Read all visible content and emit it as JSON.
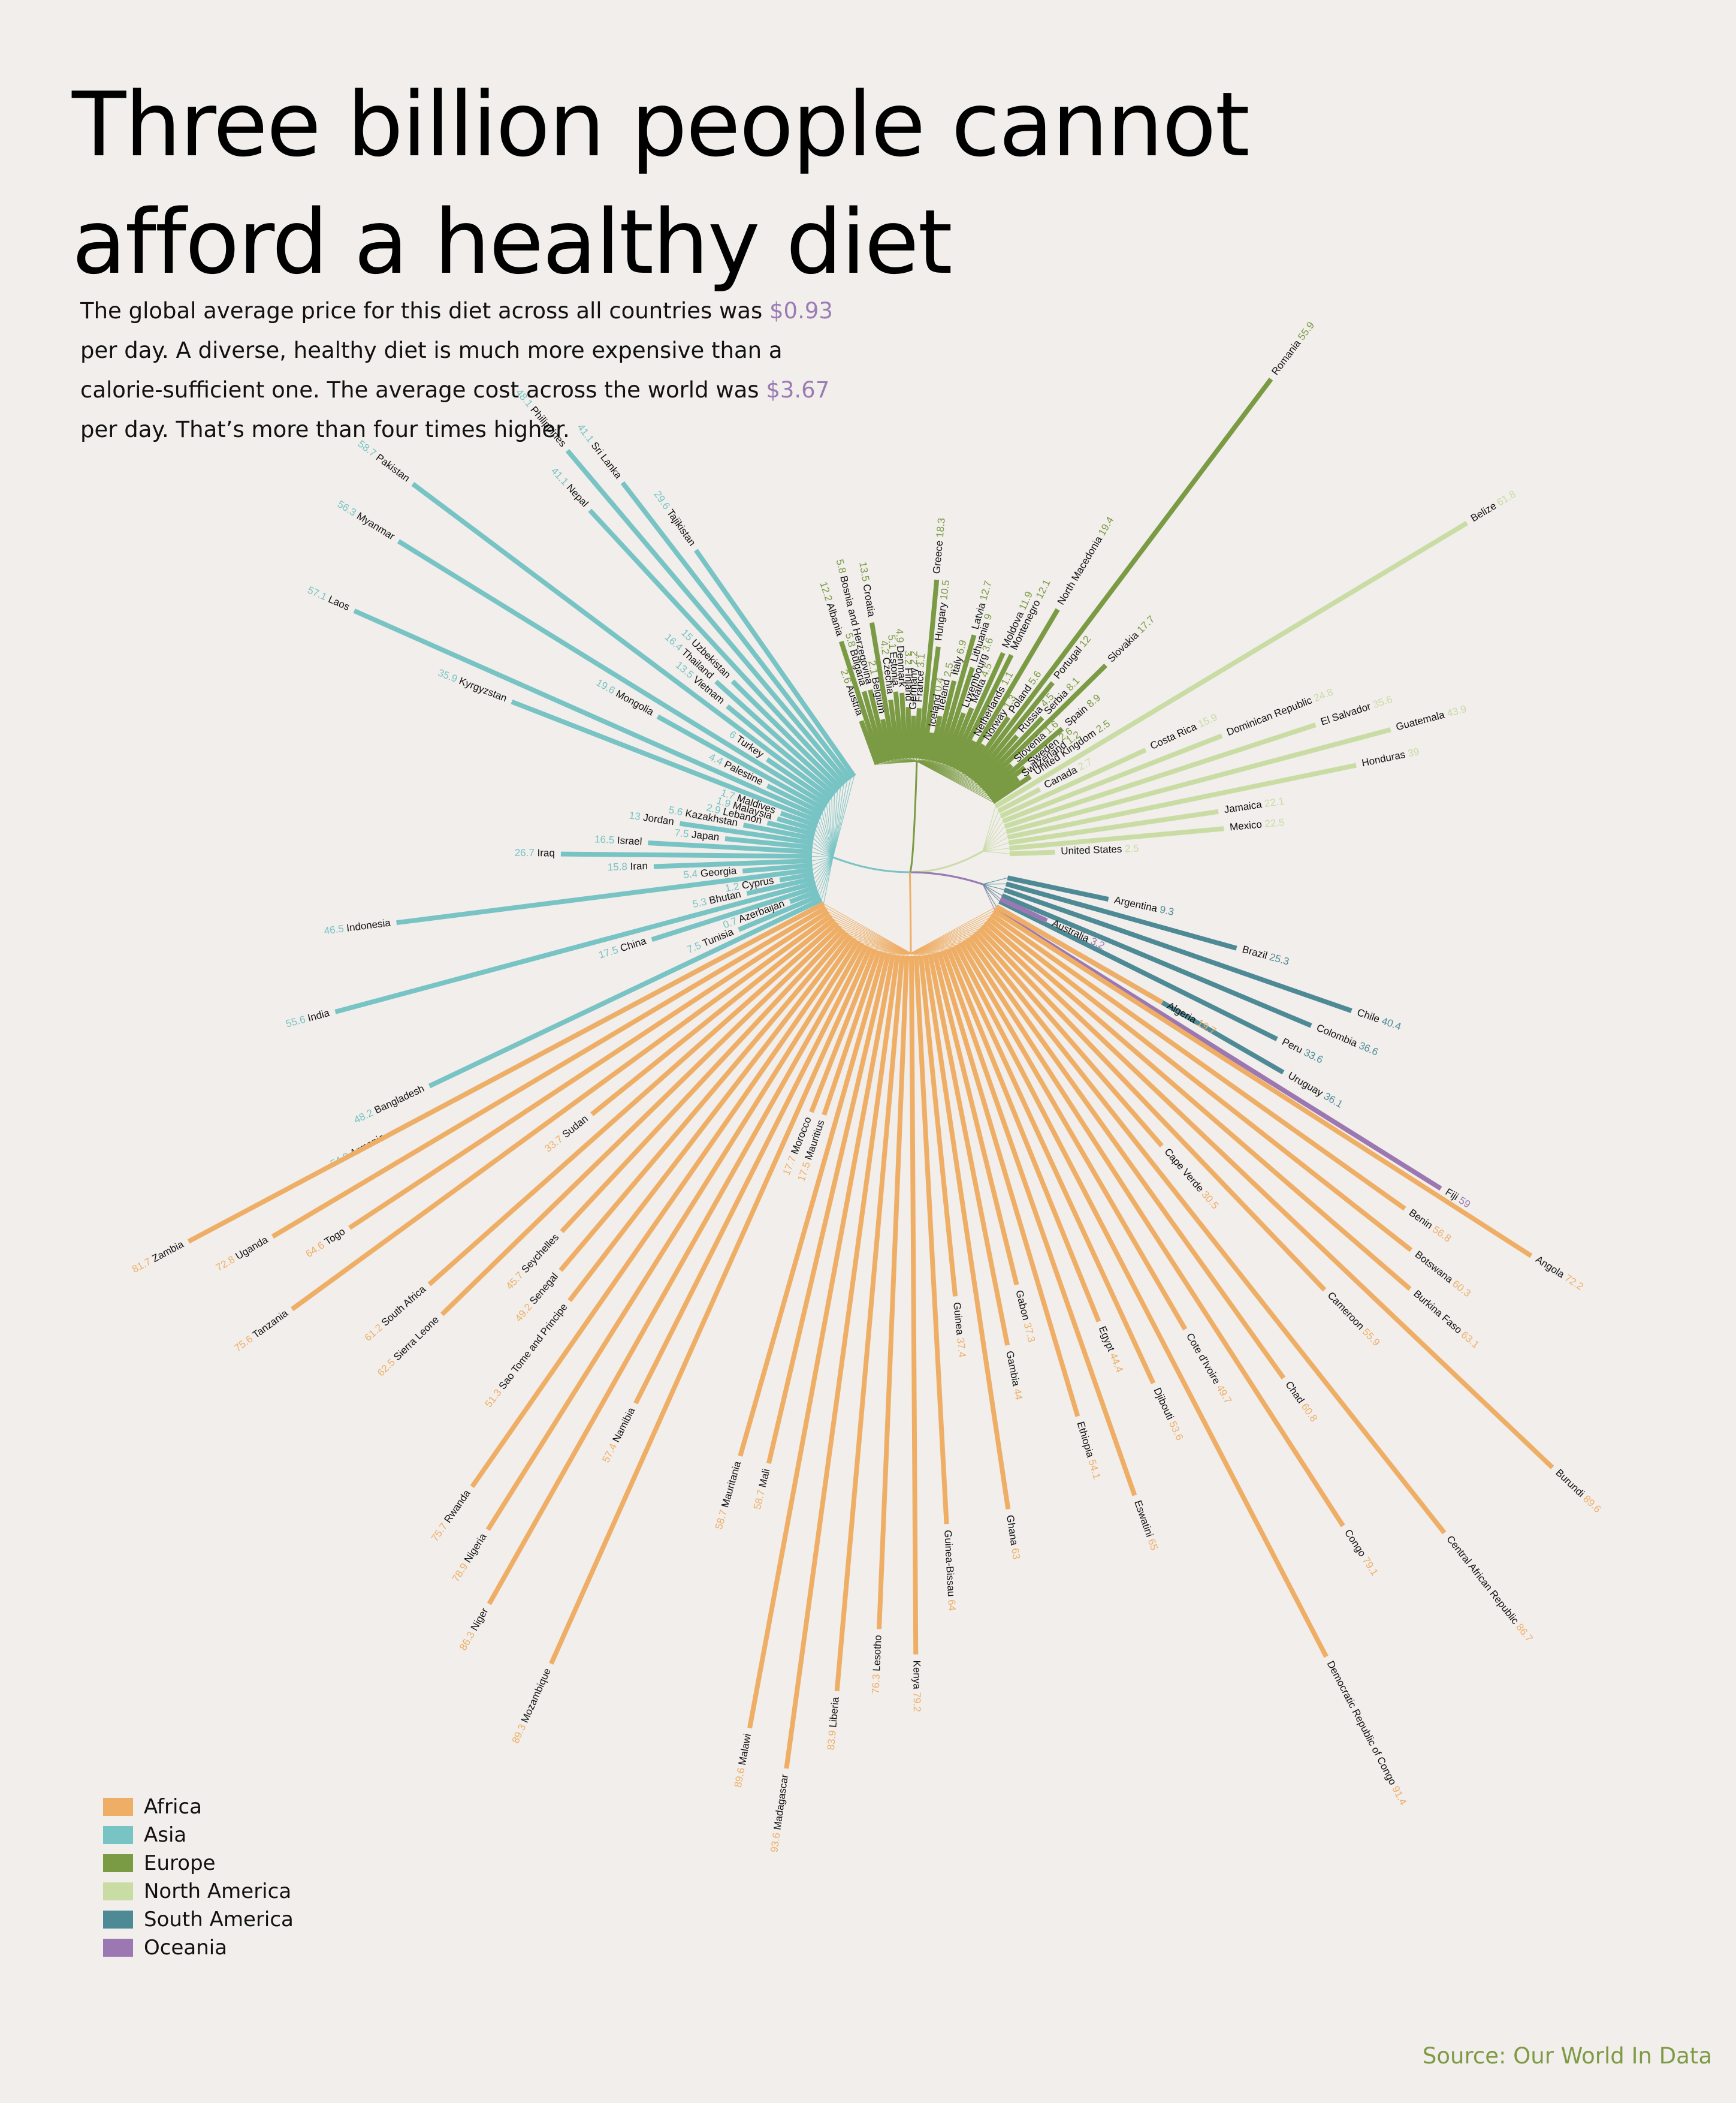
{
  "title_lines": [
    "Three billion people cannot",
    "afford a healthy diet"
  ],
  "subtitle": {
    "p1": "The global average price for this diet across all countries was ",
    "v1": "$0.93",
    "p2": " per day. A diverse, healthy diet is much more expensive than a calorie-sufficient one. The  average cost across the world was ",
    "v2": "$3.67",
    "p3": " per day. That’s more than four times higher."
  },
  "source": "Source: Our World In Data",
  "colors": {
    "Africa": "#efae66",
    "Asia": "#78c3c4",
    "Europe": "#7a9a43",
    "North America": "#c9dca4",
    "South America": "#4e8a96",
    "Oceania": "#9b78b2"
  },
  "legend": [
    "Africa",
    "Asia",
    "Europe",
    "North America",
    "South America",
    "Oceania"
  ],
  "chart_data": {
    "type": "radial-bar",
    "unit": "percent of population that cannot afford a healthy diet",
    "series": [
      {
        "name": "Asia",
        "points": [
          [
            "Armenia",
            54.9
          ],
          [
            "Bangladesh",
            48.2
          ],
          [
            "Tunisia",
            7.5
          ],
          [
            "Azerbaijan",
            0.7
          ],
          [
            "China",
            17.5
          ],
          [
            "India",
            55.6
          ],
          [
            "Bhutan",
            5.3
          ],
          [
            "Cyprus",
            1.2
          ],
          [
            "Indonesia",
            46.5
          ],
          [
            "Georgia",
            5.4
          ],
          [
            "Iran",
            15.8
          ],
          [
            "Iraq",
            26.7
          ],
          [
            "Israel",
            16.5
          ],
          [
            "Japan",
            7.5
          ],
          [
            "Jordan",
            13
          ],
          [
            "Kazakhstan",
            5.6
          ],
          [
            "Lebanon",
            2.9
          ],
          [
            "Malaysia",
            1.9
          ],
          [
            "Maldives",
            1.7
          ],
          [
            "Kyrgyzstan",
            35.9
          ],
          [
            "Laos",
            57.1
          ],
          [
            "Palestine",
            4.4
          ],
          [
            "Mongolia",
            19.6
          ],
          [
            "Myanmar",
            56.3
          ],
          [
            "Turkey",
            6
          ],
          [
            "Pakistan",
            58.7
          ],
          [
            "Vietnam",
            13.5
          ],
          [
            "Thailand",
            16.4
          ],
          [
            "Uzbekistan",
            15
          ],
          [
            "Nepal",
            41.1
          ],
          [
            "Philippines",
            48.1
          ],
          [
            "Sri Lanka",
            41.1
          ],
          [
            "Tajikistan",
            29.6
          ]
        ]
      },
      {
        "name": "Europe",
        "points": [
          [
            "Austria",
            2.6
          ],
          [
            "Albania",
            12.2
          ],
          [
            "Bulgaria",
            5.8
          ],
          [
            "Bosnia and Herzegovina",
            5.8
          ],
          [
            "Belgium",
            2.1
          ],
          [
            "Croatia",
            13.5
          ],
          [
            "Czechia",
            4.2
          ],
          [
            "Estonia",
            5.1
          ],
          [
            "Denmark",
            4.9
          ],
          [
            "Finland",
            3.2
          ],
          [
            "Germany",
            2.2
          ],
          [
            "France",
            3.1
          ],
          [
            "Greece",
            18.3
          ],
          [
            "Hungary",
            10.5
          ],
          [
            "Iceland",
            0.4
          ],
          [
            "Ireland",
            2.5
          ],
          [
            "Italy",
            6.9
          ],
          [
            "Latvia",
            12.7
          ],
          [
            "Lithuania",
            9
          ],
          [
            "Luxembourg",
            3.6
          ],
          [
            "Malta",
            4.5
          ],
          [
            "Moldova",
            11.9
          ],
          [
            "Montenegro",
            12.1
          ],
          [
            "Netherlands",
            1.1
          ],
          [
            "North Macedonia",
            19.4
          ],
          [
            "Norway",
            1.3
          ],
          [
            "Poland",
            5.6
          ],
          [
            "Romania",
            55.9
          ],
          [
            "Portugal",
            12
          ],
          [
            "Russia",
            4.5
          ],
          [
            "Serbia",
            8.1
          ],
          [
            "Slovakia",
            17.7
          ],
          [
            "Slovenia",
            1.6
          ],
          [
            "Spain",
            8.9
          ],
          [
            "Sweden",
            2.6
          ],
          [
            "Switzerland",
            1.2
          ],
          [
            "United Kingdom",
            2.5
          ]
        ]
      },
      {
        "name": "North America",
        "points": [
          [
            "Belize",
            61.8
          ],
          [
            "Canada",
            2.7
          ],
          [
            "Costa Rica",
            15.9
          ],
          [
            "Dominican Republic",
            24.8
          ],
          [
            "El Salvador",
            35.6
          ],
          [
            "Guatemala",
            43.9
          ],
          [
            "Honduras",
            39
          ],
          [
            "Jamaica",
            22.1
          ],
          [
            "Mexico",
            22.5
          ],
          [
            "United States",
            2.5
          ]
        ]
      },
      {
        "name": "South America",
        "points": [
          [
            "Argentina",
            9.3
          ],
          [
            "Brazil",
            25.3
          ],
          [
            "Chile",
            40.4
          ],
          [
            "Colombia",
            36.6
          ],
          [
            "Peru",
            33.6
          ],
          [
            "Uruguay",
            36.1
          ]
        ]
      },
      {
        "name": "Oceania",
        "points": [
          [
            "Australia",
            3.2
          ],
          [
            "Fiji",
            59
          ]
        ]
      },
      {
        "name": "Africa",
        "points": [
          [
            "Algeria",
            19.7
          ],
          [
            "Angola",
            72.2
          ],
          [
            "Benin",
            56.8
          ],
          [
            "Botswana",
            60.3
          ],
          [
            "Burkina Faso",
            63.1
          ],
          [
            "Burundi",
            89.6
          ],
          [
            "Cameroon",
            55.9
          ],
          [
            "Cape Verde",
            30.5
          ],
          [
            "Central African Republic",
            86.7
          ],
          [
            "Chad",
            60.8
          ],
          [
            "Congo",
            79.1
          ],
          [
            "Cote d'Ivoire",
            49.7
          ],
          [
            "Democratic Republic of Congo",
            91.4
          ],
          [
            "Djibouti",
            53.6
          ],
          [
            "Egypt",
            44.4
          ],
          [
            "Eswatini",
            65
          ],
          [
            "Ethiopia",
            54.1
          ],
          [
            "Gabon",
            37.3
          ],
          [
            "Gambia",
            44
          ],
          [
            "Ghana",
            63
          ],
          [
            "Guinea",
            37.4
          ],
          [
            "Guinea-Bissau",
            64
          ],
          [
            "Kenya",
            79.2
          ],
          [
            "Lesotho",
            76.3
          ],
          [
            "Liberia",
            83.9
          ],
          [
            "Madagascar",
            93.6
          ],
          [
            "Malawi",
            89.6
          ],
          [
            "Mali",
            58.7
          ],
          [
            "Mauritania",
            58.7
          ],
          [
            "Mauritius",
            17.5
          ],
          [
            "Morocco",
            17.7
          ],
          [
            "Mozambique",
            89.3
          ],
          [
            "Namibia",
            57.4
          ],
          [
            "Niger",
            86.3
          ],
          [
            "Nigeria",
            78.9
          ],
          [
            "Rwanda",
            75.7
          ],
          [
            "Sao Tome and Principe",
            51.3
          ],
          [
            "Senegal",
            49.2
          ],
          [
            "Seychelles",
            45.7
          ],
          [
            "Sierra Leone",
            62.5
          ],
          [
            "South Africa",
            61.2
          ],
          [
            "Sudan",
            33.7
          ],
          [
            "Tanzania",
            75.6
          ],
          [
            "Togo",
            64.6
          ],
          [
            "Uganda",
            72.8
          ],
          [
            "Zambia",
            81.7
          ]
        ]
      }
    ]
  }
}
